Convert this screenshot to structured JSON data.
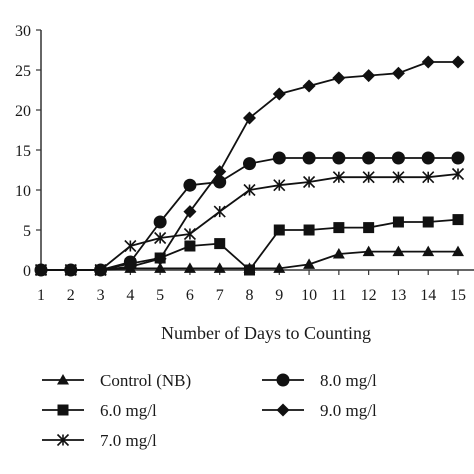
{
  "chart_data": {
    "type": "line",
    "xlabel": "Number of Days to Counting",
    "ylabel": "",
    "title": "",
    "x": [
      1,
      2,
      3,
      4,
      5,
      6,
      7,
      8,
      9,
      10,
      11,
      12,
      13,
      14,
      15
    ],
    "xlim": [
      1,
      15
    ],
    "ylim": [
      0,
      30
    ],
    "yticks": [
      0,
      5,
      10,
      15,
      20,
      25,
      30
    ],
    "grid": false,
    "legend_position": "bottom",
    "series": [
      {
        "name": "Control (NB)",
        "marker": "triangle",
        "values": [
          0,
          0,
          0,
          0.2,
          0.2,
          0.2,
          0.2,
          0.2,
          0.2,
          0.7,
          2,
          2.3,
          2.3,
          2.3,
          2.3
        ]
      },
      {
        "name": "6.0 mg/l",
        "marker": "square",
        "values": [
          0,
          0,
          0,
          0.8,
          1.5,
          3,
          3.3,
          0,
          5,
          5,
          5.3,
          5.3,
          6,
          6,
          6.3
        ]
      },
      {
        "name": "7.0 mg/l",
        "marker": "star",
        "values": [
          0,
          0,
          0,
          3,
          4,
          4.5,
          7.3,
          10,
          10.6,
          11,
          11.6,
          11.6,
          11.6,
          11.6,
          12
        ]
      },
      {
        "name": "8.0 mg/l",
        "marker": "circle",
        "values": [
          0,
          0,
          0,
          1,
          6,
          10.6,
          11,
          13.3,
          14,
          14,
          14,
          14,
          14,
          14,
          14
        ]
      },
      {
        "name": "9.0 mg/l",
        "marker": "diamond",
        "values": [
          0,
          0,
          0,
          0.4,
          1.4,
          7.3,
          12.3,
          19,
          22,
          23,
          24,
          24.3,
          24.6,
          26,
          26
        ]
      }
    ],
    "line_color": "#111111"
  },
  "legend": {
    "items": [
      "Control (NB)",
      "8.0 mg/l",
      "6.0 mg/l",
      "9.0 mg/l",
      "7.0 mg/l"
    ]
  }
}
